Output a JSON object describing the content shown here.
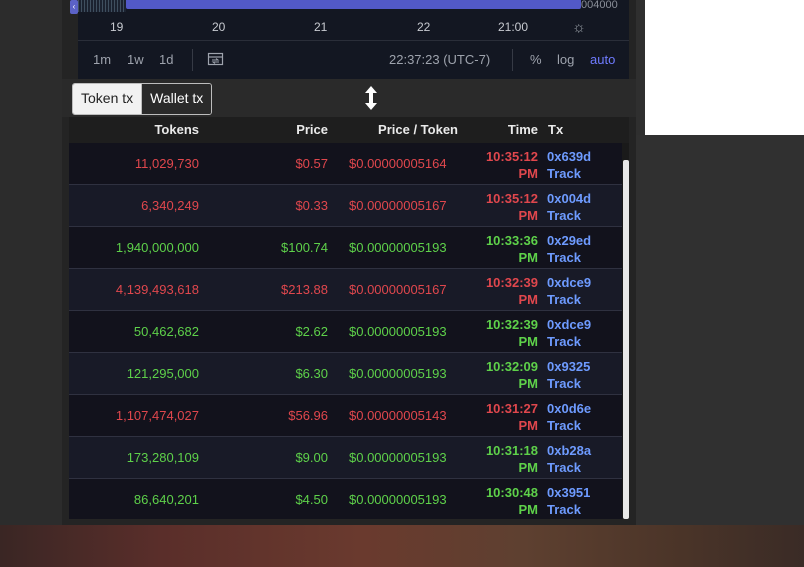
{
  "chart": {
    "navigator_value": "004000",
    "time_ticks": [
      "19",
      "20",
      "21",
      "22",
      "21:00"
    ],
    "settings_icon": "sun-icon",
    "timeframes": [
      "1m",
      "1w",
      "1d"
    ],
    "compare_icon": "compare-icon",
    "clock": "22:37:23 (UTC-7)",
    "options": [
      "%",
      "log",
      "auto"
    ],
    "active_option": "auto",
    "accent_color": "#6f7bff"
  },
  "tx_toggle": {
    "token_tx": "Token tx",
    "wallet_tx": "Wallet tx",
    "selected": "Token tx",
    "resize_icon": "vertical-resize-icon"
  },
  "table": {
    "headers": {
      "tokens": "Tokens",
      "price": "Price",
      "price_per_token": "Price / Token",
      "time": "Time",
      "tx": "Tx"
    },
    "colors": {
      "buy": "#5ed14a",
      "sell": "#e0474d",
      "link": "#6e9bff"
    },
    "rows": [
      {
        "side": "sell",
        "tokens": "11,029,730",
        "price": "$0.57",
        "price_per_token": "$0.00000005164",
        "time": "10:35:12",
        "ampm": "PM",
        "tx": "0x639d",
        "track": "Track"
      },
      {
        "side": "sell",
        "tokens": "6,340,249",
        "price": "$0.33",
        "price_per_token": "$0.00000005167",
        "time": "10:35:12",
        "ampm": "PM",
        "tx": "0x004d",
        "track": "Track"
      },
      {
        "side": "buy",
        "tokens": "1,940,000,000",
        "price": "$100.74",
        "price_per_token": "$0.00000005193",
        "time": "10:33:36",
        "ampm": "PM",
        "tx": "0x29ed",
        "track": "Track"
      },
      {
        "side": "sell",
        "tokens": "4,139,493,618",
        "price": "$213.88",
        "price_per_token": "$0.00000005167",
        "time": "10:32:39",
        "ampm": "PM",
        "tx": "0xdce9",
        "track": "Track"
      },
      {
        "side": "buy",
        "tokens": "50,462,682",
        "price": "$2.62",
        "price_per_token": "$0.00000005193",
        "time": "10:32:39",
        "ampm": "PM",
        "tx": "0xdce9",
        "track": "Track"
      },
      {
        "side": "buy",
        "tokens": "121,295,000",
        "price": "$6.30",
        "price_per_token": "$0.00000005193",
        "time": "10:32:09",
        "ampm": "PM",
        "tx": "0x9325",
        "track": "Track"
      },
      {
        "side": "sell",
        "tokens": "1,107,474,027",
        "price": "$56.96",
        "price_per_token": "$0.00000005143",
        "time": "10:31:27",
        "ampm": "PM",
        "tx": "0x0d6e",
        "track": "Track"
      },
      {
        "side": "buy",
        "tokens": "173,280,109",
        "price": "$9.00",
        "price_per_token": "$0.00000005193",
        "time": "10:31:18",
        "ampm": "PM",
        "tx": "0xb28a",
        "track": "Track"
      },
      {
        "side": "buy",
        "tokens": "86,640,201",
        "price": "$4.50",
        "price_per_token": "$0.00000005193",
        "time": "10:30:48",
        "ampm": "PM",
        "tx": "0x3951",
        "track": "Track"
      }
    ]
  }
}
